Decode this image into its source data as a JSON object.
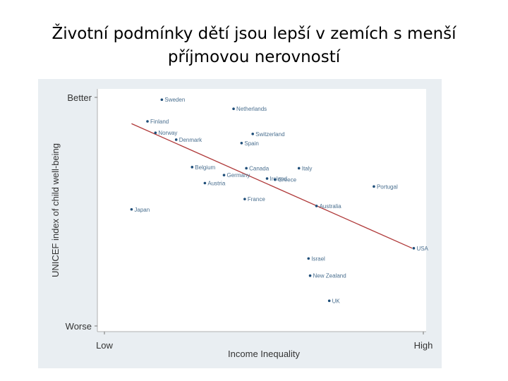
{
  "title_lines": [
    "Životní podmínky dětí jsou lepší v zemích s menší",
    "příjmovou nerovností"
  ],
  "chart_data": {
    "type": "scatter",
    "xlabel": "Income Inequality",
    "ylabel": "UNICEF index of child well-being",
    "x_tick_labels": [
      "Low",
      "High"
    ],
    "y_tick_labels": [
      "Better",
      "Worse"
    ],
    "xlim": [
      0,
      1
    ],
    "ylim": [
      0,
      1
    ],
    "grid": false,
    "legend": "none",
    "point_color": "#1f4e79",
    "trend_color": "#b03a3a",
    "points": [
      {
        "label": "Sweden",
        "x": 0.18,
        "y": 0.99
      },
      {
        "label": "Netherlands",
        "x": 0.405,
        "y": 0.95
      },
      {
        "label": "Finland",
        "x": 0.135,
        "y": 0.895
      },
      {
        "label": "Norway",
        "x": 0.16,
        "y": 0.845
      },
      {
        "label": "Denmark",
        "x": 0.225,
        "y": 0.815
      },
      {
        "label": "Switzerland",
        "x": 0.465,
        "y": 0.84
      },
      {
        "label": "Spain",
        "x": 0.43,
        "y": 0.8
      },
      {
        "label": "Belgium",
        "x": 0.275,
        "y": 0.695
      },
      {
        "label": "Canada",
        "x": 0.445,
        "y": 0.69
      },
      {
        "label": "Italy",
        "x": 0.61,
        "y": 0.69
      },
      {
        "label": "Germany",
        "x": 0.375,
        "y": 0.66
      },
      {
        "label": "Ireland",
        "x": 0.51,
        "y": 0.645
      },
      {
        "label": "Greece",
        "x": 0.535,
        "y": 0.64
      },
      {
        "label": "Austria",
        "x": 0.315,
        "y": 0.625
      },
      {
        "label": "Portugal",
        "x": 0.845,
        "y": 0.61
      },
      {
        "label": "France",
        "x": 0.44,
        "y": 0.555
      },
      {
        "label": "Australia",
        "x": 0.665,
        "y": 0.525
      },
      {
        "label": "Japan",
        "x": 0.085,
        "y": 0.51
      },
      {
        "label": "USA",
        "x": 0.97,
        "y": 0.34
      },
      {
        "label": "Israel",
        "x": 0.64,
        "y": 0.295
      },
      {
        "label": "New Zealand",
        "x": 0.645,
        "y": 0.22
      },
      {
        "label": "UK",
        "x": 0.705,
        "y": 0.11
      }
    ],
    "trend_line": {
      "x": [
        0.085,
        0.965
      ],
      "y": [
        0.885,
        0.34
      ]
    }
  }
}
